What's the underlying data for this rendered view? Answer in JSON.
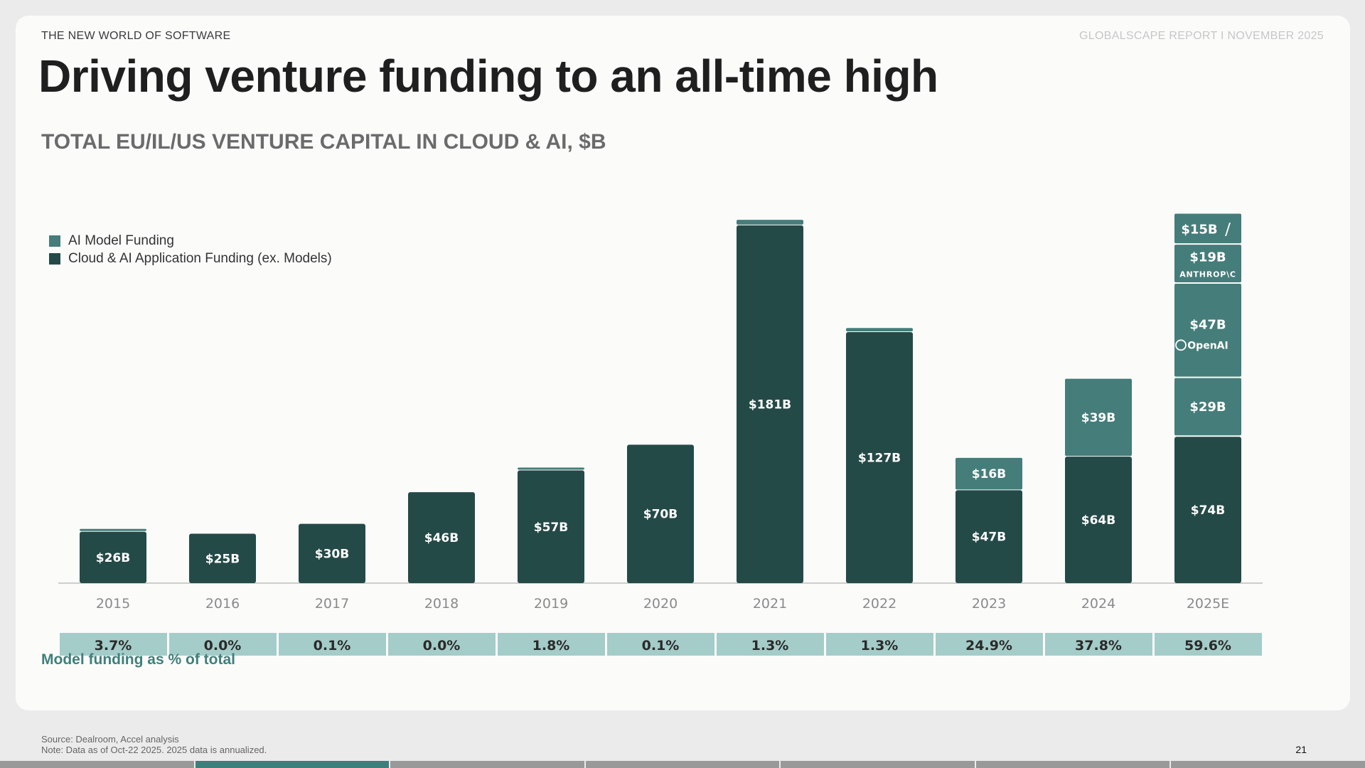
{
  "header": {
    "kicker": "THE NEW WORLD OF SOFTWARE",
    "report": "GLOBALSCAPE REPORT I NOVEMBER 2025",
    "title": "Driving venture funding to an all-time high",
    "subtitle": "TOTAL EU/IL/US VENTURE CAPITAL IN CLOUD & AI, $B"
  },
  "colors": {
    "app": "#244a48",
    "model": "#457d7a",
    "pct_band": "#a4ccc9",
    "axis_label": "#8a8a8a"
  },
  "chart_data": {
    "type": "bar",
    "stacked": true,
    "title": "TOTAL EU/IL/US VENTURE CAPITAL IN CLOUD & AI, $B",
    "categories": [
      "2015",
      "2016",
      "2017",
      "2018",
      "2019",
      "2020",
      "2021",
      "2022",
      "2023",
      "2024",
      "2025E"
    ],
    "series": [
      {
        "name": "Cloud & AI Application Funding (ex. Models)",
        "values": [
          26,
          25,
          30,
          46,
          57,
          70,
          181,
          127,
          47,
          64,
          74
        ],
        "labels": [
          "$26B",
          "$25B",
          "$30B",
          "$46B",
          "$57B",
          "$70B",
          "$181B",
          "$127B",
          "$47B",
          "$64B",
          "$74B"
        ]
      },
      {
        "name": "AI Model Funding",
        "values": [
          1,
          0,
          0,
          0,
          1,
          0,
          2.4,
          1.7,
          16,
          39,
          110
        ],
        "labels": [
          "",
          "",
          "",
          "",
          "",
          "",
          "",
          "",
          "$16B",
          "$39B",
          ""
        ]
      }
    ],
    "breakdown_2025E": [
      {
        "label": "$29B",
        "value": 29,
        "company": ""
      },
      {
        "label": "$47B",
        "value": 47,
        "company": "OpenAI"
      },
      {
        "label": "$19B",
        "value": 19,
        "company": "ANTHROP\\C"
      },
      {
        "label": "$15B",
        "value": 15,
        "company": "xAI"
      }
    ],
    "model_pct_of_total": [
      "3.7%",
      "0.0%",
      "0.1%",
      "0.0%",
      "1.8%",
      "0.1%",
      "1.3%",
      "1.3%",
      "24.9%",
      "37.8%",
      "59.6%"
    ],
    "model_pct_label": "Model funding as % of total",
    "legend": [
      "AI Model Funding",
      "Cloud & AI Application Funding (ex. Models)"
    ],
    "grid": false,
    "legend_position": "top-left"
  },
  "footer": {
    "source": "Source: Dealroom, Accel analysis",
    "note": "Note: Data as of Oct-22 2025. 2025 data is annualized.",
    "page": "21"
  }
}
